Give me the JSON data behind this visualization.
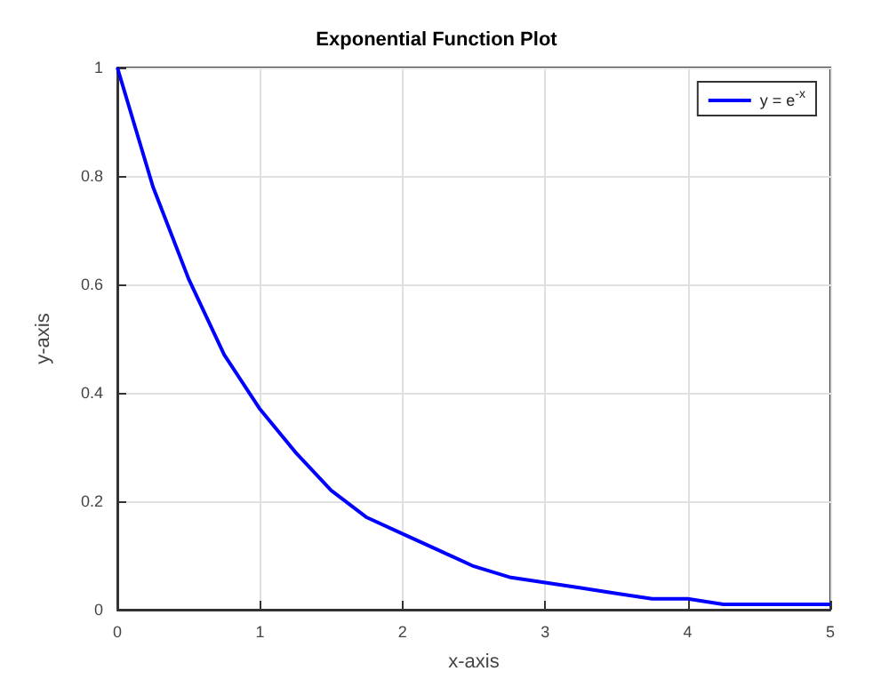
{
  "chart_data": {
    "type": "line",
    "title": "Exponential Function Plot",
    "xlabel": "x-axis",
    "ylabel": "y-axis",
    "x": [
      0,
      0.25,
      0.5,
      0.75,
      1,
      1.25,
      1.5,
      1.75,
      2,
      2.25,
      2.5,
      2.75,
      3,
      3.25,
      3.5,
      3.75,
      4,
      4.25,
      4.5,
      4.75,
      5
    ],
    "series": [
      {
        "name": "y = e$^{-x}$",
        "color": "#0000ff",
        "values": [
          1,
          0.78,
          0.61,
          0.47,
          0.37,
          0.29,
          0.22,
          0.17,
          0.14,
          0.11,
          0.08,
          0.06,
          0.05,
          0.04,
          0.03,
          0.02,
          0.02,
          0.01,
          0.01,
          0.01,
          0.01
        ]
      }
    ],
    "xlim": [
      0,
      5
    ],
    "xticks": [
      0,
      1,
      2,
      3,
      4,
      5
    ],
    "ylim": [
      0,
      1
    ],
    "yticks": [
      0,
      0.2,
      0.4,
      0.6,
      0.8,
      1
    ],
    "grid": true,
    "legend": "top right",
    "marker": "none",
    "line_style": "solid"
  }
}
